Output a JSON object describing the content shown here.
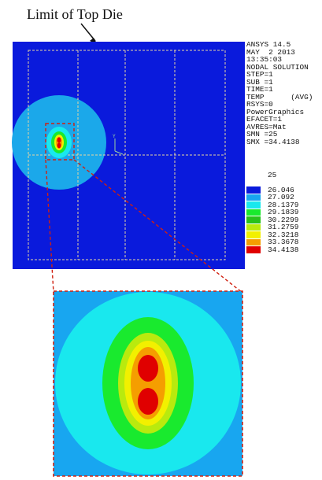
{
  "annotation": {
    "label": "Limit of Top Die"
  },
  "ansys_header": {
    "lines": [
      "ANSYS 14.5",
      "MAY  2 2013",
      "13:35:03",
      "NODAL SOLUTION",
      "STEP=1",
      "SUB =1",
      "TIME=1",
      "TEMP      (AVG)",
      "RSYS=0",
      "PowerGraphics",
      "EFACET=1",
      "AVRES=Mat",
      "SMN =25",
      "SMX =34.4138"
    ]
  },
  "legend": {
    "min_label": "25",
    "items": [
      {
        "label": "26.046",
        "color": "#0a1adc"
      },
      {
        "label": "27.092",
        "color": "#18a6f0"
      },
      {
        "label": "28.1379",
        "color": "#19e8ee"
      },
      {
        "label": "29.1839",
        "color": "#19ea2e"
      },
      {
        "label": "30.2299",
        "color": "#27c21a"
      },
      {
        "label": "31.2759",
        "color": "#b9ea0e"
      },
      {
        "label": "32.3218",
        "color": "#f2f000"
      },
      {
        "label": "33.3678",
        "color": "#f59e00"
      },
      {
        "label": "34.4138",
        "color": "#e00000"
      }
    ]
  },
  "colors": {
    "plate": "#0a1adc",
    "outer_disk": "#1ba8ea",
    "zoom_bg": "#18a6f0",
    "zoom_disk": "#19e8ee",
    "green": "#19ea2e",
    "yellow": "#f2f000",
    "orange": "#f59e00",
    "red": "#e00000",
    "die_outline": "#e8d6a0",
    "callout": "#d02010"
  }
}
